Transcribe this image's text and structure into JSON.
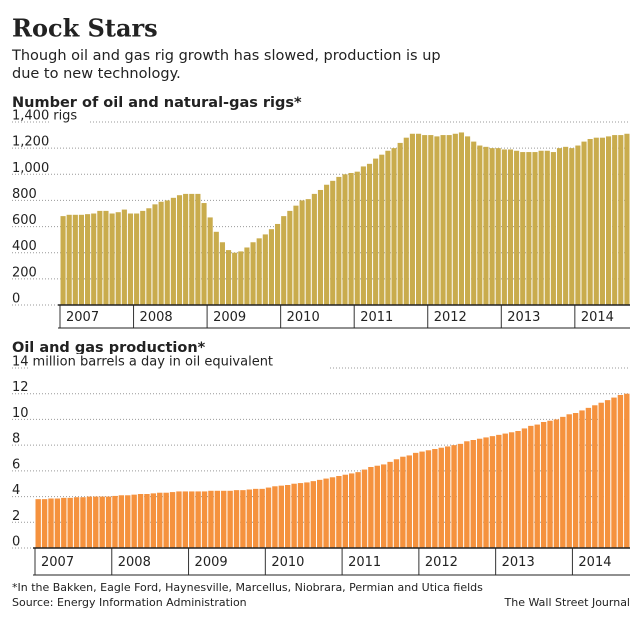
{
  "header": {
    "title": "Rock Stars",
    "subtitle": [
      "Though oil and gas rig growth has slowed, production is up",
      "due to new technology."
    ]
  },
  "chart_data": [
    {
      "type": "bar",
      "title": "Number of oil and natural-gas rigs*",
      "y_unit": "rigs",
      "color": "#c9ac4d",
      "grid": true,
      "categories": [
        "2007",
        null,
        null,
        null,
        null,
        null,
        null,
        null,
        null,
        null,
        null,
        null,
        "2008",
        null,
        null,
        null,
        null,
        null,
        null,
        null,
        null,
        null,
        null,
        null,
        "2009",
        null,
        null,
        null,
        null,
        null,
        null,
        null,
        null,
        null,
        null,
        null,
        "2010",
        null,
        null,
        null,
        null,
        null,
        null,
        null,
        null,
        null,
        null,
        null,
        "2011",
        null,
        null,
        null,
        null,
        null,
        null,
        null,
        null,
        null,
        null,
        null,
        "2012",
        null,
        null,
        null,
        null,
        null,
        null,
        null,
        null,
        null,
        null,
        null,
        "2013",
        null,
        null,
        null,
        null,
        null,
        null,
        null,
        null,
        null,
        null,
        null,
        "2014",
        null,
        null,
        null,
        null,
        null,
        null,
        null,
        null
      ],
      "values": [
        680,
        690,
        690,
        690,
        695,
        700,
        720,
        720,
        700,
        710,
        730,
        700,
        700,
        720,
        740,
        770,
        790,
        800,
        820,
        840,
        850,
        850,
        850,
        780,
        670,
        560,
        480,
        420,
        400,
        410,
        440,
        480,
        510,
        540,
        580,
        620,
        680,
        720,
        760,
        800,
        810,
        850,
        880,
        920,
        950,
        980,
        1000,
        1010,
        1020,
        1060,
        1080,
        1120,
        1150,
        1180,
        1200,
        1240,
        1280,
        1310,
        1310,
        1300,
        1300,
        1290,
        1300,
        1300,
        1310,
        1320,
        1290,
        1250,
        1220,
        1210,
        1200,
        1200,
        1190,
        1190,
        1180,
        1170,
        1170,
        1170,
        1180,
        1180,
        1170,
        1200,
        1210,
        1200,
        1220,
        1250,
        1270,
        1280,
        1280,
        1290,
        1300,
        1300,
        1310
      ],
      "ylim": [
        0,
        1400
      ],
      "yticks": [
        0,
        {
          "value": 200,
          "label": "200"
        },
        400,
        600,
        800,
        {
          "value": 1000,
          "label": "1,000"
        },
        {
          "value": 1200,
          "label": "1,200"
        },
        {
          "value": 1400,
          "label": "1,400"
        }
      ]
    },
    {
      "type": "bar",
      "title": "Oil and gas production*",
      "y_unit": "million barrels a day in oil equivalent",
      "color": "#f5923e",
      "grid": true,
      "categories": [
        "2007",
        null,
        null,
        null,
        null,
        null,
        null,
        null,
        null,
        null,
        null,
        null,
        "2008",
        null,
        null,
        null,
        null,
        null,
        null,
        null,
        null,
        null,
        null,
        null,
        "2009",
        null,
        null,
        null,
        null,
        null,
        null,
        null,
        null,
        null,
        null,
        null,
        "2010",
        null,
        null,
        null,
        null,
        null,
        null,
        null,
        null,
        null,
        null,
        null,
        "2011",
        null,
        null,
        null,
        null,
        null,
        null,
        null,
        null,
        null,
        null,
        null,
        "2012",
        null,
        null,
        null,
        null,
        null,
        null,
        null,
        null,
        null,
        null,
        null,
        "2013",
        null,
        null,
        null,
        null,
        null,
        null,
        null,
        null,
        null,
        null,
        null,
        "2014",
        null,
        null,
        null,
        null,
        null,
        null,
        null,
        null
      ],
      "values": [
        3.8,
        3.8,
        3.85,
        3.85,
        3.9,
        3.9,
        3.95,
        3.95,
        4.0,
        4.0,
        4.0,
        4.0,
        4.05,
        4.1,
        4.1,
        4.15,
        4.2,
        4.2,
        4.25,
        4.3,
        4.3,
        4.35,
        4.4,
        4.4,
        4.4,
        4.4,
        4.4,
        4.45,
        4.45,
        4.45,
        4.45,
        4.5,
        4.5,
        4.55,
        4.6,
        4.6,
        4.7,
        4.8,
        4.85,
        4.9,
        5.0,
        5.05,
        5.1,
        5.2,
        5.3,
        5.4,
        5.5,
        5.6,
        5.7,
        5.8,
        5.9,
        6.1,
        6.3,
        6.4,
        6.5,
        6.7,
        6.9,
        7.1,
        7.2,
        7.4,
        7.5,
        7.6,
        7.7,
        7.8,
        7.9,
        8.0,
        8.1,
        8.3,
        8.4,
        8.5,
        8.6,
        8.7,
        8.8,
        8.9,
        9.0,
        9.1,
        9.3,
        9.5,
        9.6,
        9.8,
        9.9,
        10.0,
        10.2,
        10.4,
        10.5,
        10.7,
        10.9,
        11.1,
        11.3,
        11.5,
        11.7,
        11.9,
        12.0
      ],
      "ylim": [
        0,
        14
      ],
      "yticks": [
        0,
        2,
        4,
        6,
        8,
        10,
        12,
        14
      ]
    }
  ],
  "footer": {
    "note": "*In the Bakken, Eagle Ford, Haynesville, Marcellus, Niobrara, Permian and Utica fields",
    "source": "Source: Energy Information Administration",
    "credit": "The Wall Street Journal"
  }
}
